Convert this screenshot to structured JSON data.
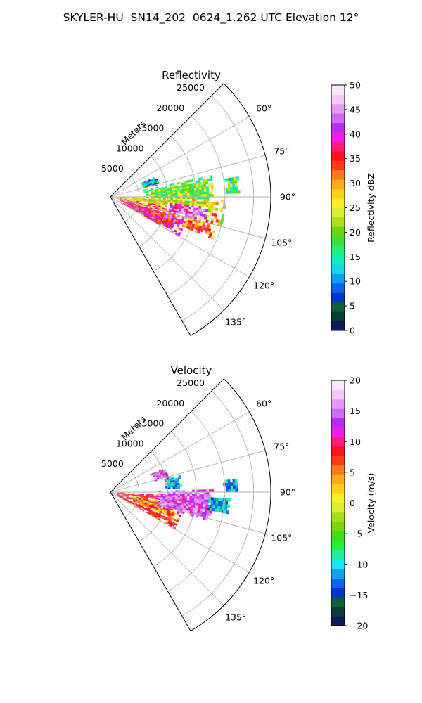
{
  "title": "SKYLER-HU  SN14_202  0624_1.262 UTC Elevation 12°",
  "chart_data": [
    {
      "type": "heatmap",
      "projection": "polar-sector",
      "title": "Reflectivity",
      "radial_label": "Meters",
      "radial_ticks": [
        5000,
        10000,
        15000,
        20000,
        25000
      ],
      "radial_tick_labels": [
        "5000",
        "10000",
        "15000",
        "20000",
        "25000"
      ],
      "rlim": [
        0,
        28000
      ],
      "azimuth_range_deg": [
        45,
        150
      ],
      "azimuth_ticks_deg": [
        60,
        75,
        90,
        105,
        120,
        135
      ],
      "azimuth_tick_labels": [
        "60°",
        "75°",
        "90°",
        "105°",
        "120°",
        "135°"
      ],
      "grid": true,
      "colorbar": {
        "label": "Reflectivity dBZ",
        "vmin": 0,
        "vmax": 50,
        "ticks": [
          0,
          5,
          10,
          15,
          20,
          25,
          30,
          35,
          40,
          45,
          50
        ],
        "tick_labels": [
          "0",
          "5",
          "10",
          "15",
          "20",
          "25",
          "30",
          "35",
          "40",
          "45",
          "50"
        ],
        "colors": [
          "#0d1a5c",
          "#083d33",
          "#115f3a",
          "#0034cc",
          "#0a63ee",
          "#0fa0f2",
          "#15d6e8",
          "#0ff0b8",
          "#1ef07a",
          "#3ce03a",
          "#6fd40e",
          "#a6e019",
          "#d8ee2e",
          "#f6f023",
          "#ffd21a",
          "#ffaa1a",
          "#ff7a1a",
          "#ff3a1a",
          "#ff1020",
          "#ff1c74",
          "#f21ce8",
          "#b82cf2",
          "#cd6cf2",
          "#e49af4",
          "#f2c8f4",
          "#fbe7fb"
        ]
      },
      "echo_regions": [
        {
          "az": [
            78,
            95
          ],
          "r": [
            5500,
            18000
          ],
          "value": 20
        },
        {
          "az": [
            91,
            104
          ],
          "r": [
            1200,
            20000
          ],
          "value": 25
        },
        {
          "az": [
            99,
            112
          ],
          "r": [
            1500,
            19000
          ],
          "value": 32
        },
        {
          "az": [
            104,
            120
          ],
          "r": [
            1800,
            13500
          ],
          "value": 38
        },
        {
          "az": [
            96,
            104
          ],
          "r": [
            10000,
            17000
          ],
          "value": 42
        },
        {
          "az": [
            80,
            88
          ],
          "r": [
            20000,
            22500
          ],
          "value": 18
        },
        {
          "az": [
            66,
            76
          ],
          "r": [
            5500,
            8500
          ],
          "value": 10
        }
      ]
    },
    {
      "type": "heatmap",
      "projection": "polar-sector",
      "title": "Velocity",
      "radial_label": "Meters",
      "radial_ticks": [
        5000,
        10000,
        15000,
        20000,
        25000
      ],
      "radial_tick_labels": [
        "5000",
        "10000",
        "15000",
        "20000",
        "25000"
      ],
      "rlim": [
        0,
        28000
      ],
      "azimuth_range_deg": [
        45,
        150
      ],
      "azimuth_ticks_deg": [
        60,
        75,
        90,
        105,
        120,
        135
      ],
      "azimuth_tick_labels": [
        "60°",
        "75°",
        "90°",
        "105°",
        "120°",
        "135°"
      ],
      "grid": true,
      "colorbar": {
        "label": "Velocity (m/s)",
        "vmin": -20,
        "vmax": 20,
        "ticks": [
          -20,
          -15,
          -10,
          -5,
          0,
          5,
          10,
          15,
          20
        ],
        "tick_labels": [
          "−20",
          "−15",
          "−10",
          "−5",
          "0",
          "5",
          "10",
          "15",
          "20"
        ],
        "colors": [
          "#0d1a5c",
          "#083d33",
          "#115f3a",
          "#0034cc",
          "#0a63ee",
          "#0fa0f2",
          "#15e8f0",
          "#1ef0a0",
          "#1ef03a",
          "#3ce01a",
          "#7cd80e",
          "#a6e019",
          "#d8ee2e",
          "#f6f023",
          "#ffd21a",
          "#ffaa1a",
          "#ff7a1a",
          "#ff3a1a",
          "#ff1020",
          "#ff1c74",
          "#f21ce8",
          "#b82cf2",
          "#cd6cf2",
          "#e49af4",
          "#f2c8f4",
          "#fbe7fb"
        ]
      },
      "echo_regions": [
        {
          "az": [
            92,
            120
          ],
          "r": [
            1200,
            13000
          ],
          "value": 8
        },
        {
          "az": [
            98,
            114
          ],
          "r": [
            3000,
            12000
          ],
          "value": 5
        },
        {
          "az": [
            88,
            106
          ],
          "r": [
            8000,
            18000
          ],
          "value": 14
        },
        {
          "az": [
            92,
            100
          ],
          "r": [
            17000,
            21000
          ],
          "value": -11
        },
        {
          "az": [
            84,
            90
          ],
          "r": [
            19500,
            22500
          ],
          "value": -12
        },
        {
          "az": [
            76,
            86
          ],
          "r": [
            9500,
            12500
          ],
          "value": -12
        },
        {
          "az": [
            66,
            76
          ],
          "r": [
            7500,
            10500
          ],
          "value": 14
        }
      ]
    }
  ]
}
